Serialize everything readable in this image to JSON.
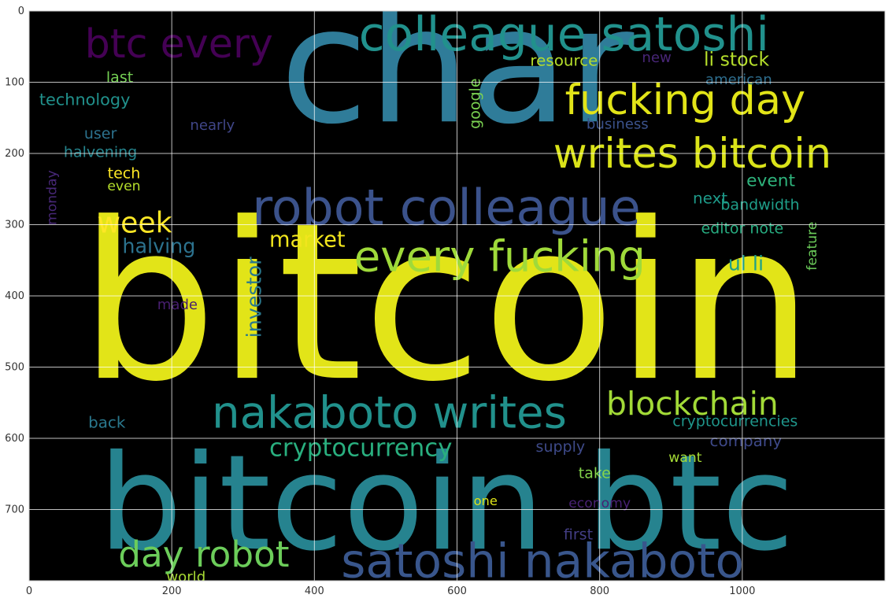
{
  "chart_data": {
    "type": "image",
    "title": "",
    "xlabel": "",
    "ylabel": "",
    "xlim": [
      0,
      1200
    ],
    "ylim": [
      800,
      0
    ],
    "grid": true,
    "background_color": "#000000",
    "x_ticks": [
      "0",
      "200",
      "400",
      "600",
      "800",
      "1000"
    ],
    "y_ticks": [
      "0",
      "100",
      "200",
      "300",
      "400",
      "500",
      "600",
      "700"
    ],
    "words": [
      {
        "text": "char",
        "x": 600,
        "y": 155,
        "size": 225,
        "color": "#2f7c99",
        "rotate": 0
      },
      {
        "text": "bitcoin",
        "x": 585,
        "y": 515,
        "size": 305,
        "color": "#e2e418",
        "rotate": 0
      },
      {
        "text": "bitcoin btc",
        "x": 585,
        "y": 755,
        "size": 185,
        "color": "#26838f",
        "rotate": 0
      },
      {
        "text": "colleague satoshi",
        "x": 750,
        "y": 55,
        "size": 66,
        "color": "#21918c",
        "rotate": 0
      },
      {
        "text": "btc every",
        "x": 210,
        "y": 65,
        "size": 56,
        "color": "#440154",
        "rotate": 0
      },
      {
        "text": "fucking day",
        "x": 920,
        "y": 145,
        "size": 58,
        "color": "#e2e418",
        "rotate": 0
      },
      {
        "text": "writes bitcoin",
        "x": 930,
        "y": 220,
        "size": 58,
        "color": "#dae319",
        "rotate": 0
      },
      {
        "text": "robot colleague",
        "x": 585,
        "y": 300,
        "size": 70,
        "color": "#3b528b",
        "rotate": 0
      },
      {
        "text": "every fucking",
        "x": 660,
        "y": 365,
        "size": 60,
        "color": "#9fda3a",
        "rotate": 0
      },
      {
        "text": "nakaboto writes",
        "x": 505,
        "y": 585,
        "size": 62,
        "color": "#21918c",
        "rotate": 0
      },
      {
        "text": "satoshi nakaboto",
        "x": 720,
        "y": 795,
        "size": 66,
        "color": "#39568c",
        "rotate": 0
      },
      {
        "text": "day robot",
        "x": 245,
        "y": 780,
        "size": 50,
        "color": "#6ccd5a",
        "rotate": 0
      },
      {
        "text": "blockchain",
        "x": 930,
        "y": 567,
        "size": 45,
        "color": "#a2da37",
        "rotate": 0
      },
      {
        "text": "cryptocurrency",
        "x": 465,
        "y": 625,
        "size": 34,
        "color": "#29af7f",
        "rotate": 0
      },
      {
        "text": "week",
        "x": 148,
        "y": 311,
        "size": 40,
        "color": "#fde725",
        "rotate": 0
      },
      {
        "text": "market",
        "x": 390,
        "y": 331,
        "size": 30,
        "color": "#f1e51d",
        "rotate": 0
      },
      {
        "text": "halving",
        "x": 182,
        "y": 340,
        "size": 28,
        "color": "#2c728e",
        "rotate": 0
      },
      {
        "text": "investor",
        "x": 325,
        "y": 402,
        "size": 28,
        "color": "#2a788e",
        "rotate": -90
      },
      {
        "text": "ul li",
        "x": 1005,
        "y": 364,
        "size": 28,
        "color": "#1fa088",
        "rotate": 0
      },
      {
        "text": "li stock",
        "x": 992,
        "y": 77,
        "size": 26,
        "color": "#b5de2b",
        "rotate": 0
      },
      {
        "text": "resource",
        "x": 750,
        "y": 77,
        "size": 22,
        "color": "#b5de2b",
        "rotate": 0
      },
      {
        "text": "new",
        "x": 880,
        "y": 72,
        "size": 20,
        "color": "#482677",
        "rotate": 0
      },
      {
        "text": "american",
        "x": 995,
        "y": 103,
        "size": 20,
        "color": "#2e6e8e",
        "rotate": 0
      },
      {
        "text": "last",
        "x": 127,
        "y": 100,
        "size": 21,
        "color": "#75d054",
        "rotate": 0
      },
      {
        "text": "technology",
        "x": 78,
        "y": 132,
        "size": 23,
        "color": "#21918c",
        "rotate": 0
      },
      {
        "text": "google",
        "x": 632,
        "y": 130,
        "size": 21,
        "color": "#7ad151",
        "rotate": -90
      },
      {
        "text": "user",
        "x": 100,
        "y": 179,
        "size": 21,
        "color": "#2c728e",
        "rotate": 0
      },
      {
        "text": "nearly",
        "x": 257,
        "y": 167,
        "size": 20,
        "color": "#404688",
        "rotate": 0
      },
      {
        "text": "business",
        "x": 825,
        "y": 165,
        "size": 20,
        "color": "#3b528b",
        "rotate": 0
      },
      {
        "text": "halvening",
        "x": 100,
        "y": 205,
        "size": 21,
        "color": "#25858e",
        "rotate": 0
      },
      {
        "text": "tech",
        "x": 133,
        "y": 235,
        "size": 21,
        "color": "#fde725",
        "rotate": 0
      },
      {
        "text": "even",
        "x": 133,
        "y": 252,
        "size": 19,
        "color": "#b5de2b",
        "rotate": 0
      },
      {
        "text": "monday",
        "x": 38,
        "y": 262,
        "size": 19,
        "color": "#482878",
        "rotate": -90
      },
      {
        "text": "event",
        "x": 1040,
        "y": 246,
        "size": 24,
        "color": "#2eb37c",
        "rotate": 0
      },
      {
        "text": "next",
        "x": 955,
        "y": 270,
        "size": 22,
        "color": "#1e9b8a",
        "rotate": 0
      },
      {
        "text": "bandwidth",
        "x": 1025,
        "y": 279,
        "size": 21,
        "color": "#1f9e89",
        "rotate": 0
      },
      {
        "text": "editor note",
        "x": 1000,
        "y": 312,
        "size": 21,
        "color": "#27ad81",
        "rotate": 0
      },
      {
        "text": "feature",
        "x": 1104,
        "y": 330,
        "size": 19,
        "color": "#6ccd5a",
        "rotate": -90
      },
      {
        "text": "made",
        "x": 208,
        "y": 419,
        "size": 20,
        "color": "#481f70",
        "rotate": 0
      },
      {
        "text": "back",
        "x": 109,
        "y": 585,
        "size": 22,
        "color": "#2a788e",
        "rotate": 0
      },
      {
        "text": "cryptocurrencies",
        "x": 990,
        "y": 583,
        "size": 21,
        "color": "#1f968b",
        "rotate": 0
      },
      {
        "text": "company",
        "x": 1005,
        "y": 611,
        "size": 22,
        "color": "#3e4989",
        "rotate": 0
      },
      {
        "text": "supply",
        "x": 745,
        "y": 619,
        "size": 21,
        "color": "#3e4a89",
        "rotate": 0
      },
      {
        "text": "want",
        "x": 920,
        "y": 633,
        "size": 19,
        "color": "#a5db36",
        "rotate": 0
      },
      {
        "text": "take",
        "x": 793,
        "y": 656,
        "size": 21,
        "color": "#84d44b",
        "rotate": 0
      },
      {
        "text": "one",
        "x": 640,
        "y": 694,
        "size": 18,
        "color": "#dde318",
        "rotate": 0
      },
      {
        "text": "economy",
        "x": 800,
        "y": 697,
        "size": 19,
        "color": "#482173",
        "rotate": 0
      },
      {
        "text": "first",
        "x": 770,
        "y": 742,
        "size": 21,
        "color": "#433e85",
        "rotate": 0
      },
      {
        "text": "world",
        "x": 220,
        "y": 801,
        "size": 20,
        "color": "#a8db34",
        "rotate": 0
      }
    ]
  }
}
